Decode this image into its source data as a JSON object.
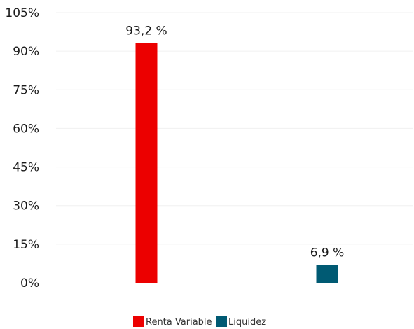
{
  "chart_data": {
    "type": "bar",
    "categories": [
      "Renta Variable",
      "Liquidez"
    ],
    "values": [
      93.2,
      6.9
    ],
    "data_labels": [
      "93,2 %",
      "6,9 %"
    ],
    "colors": [
      "#ec0000",
      "#005a73"
    ],
    "ylim": [
      0,
      105
    ],
    "yticks": [
      0,
      15,
      30,
      45,
      60,
      75,
      90,
      105
    ],
    "ytick_labels": [
      "0%",
      "15%",
      "30%",
      "45%",
      "60%",
      "75%",
      "90%",
      "105%"
    ],
    "grid": true,
    "legend": {
      "placement": "bottom",
      "entries": [
        {
          "label": "Renta Variable",
          "color": "#ec0000"
        },
        {
          "label": "Liquidez",
          "color": "#005a73"
        }
      ]
    },
    "title": "",
    "xlabel": "",
    "ylabel": ""
  }
}
